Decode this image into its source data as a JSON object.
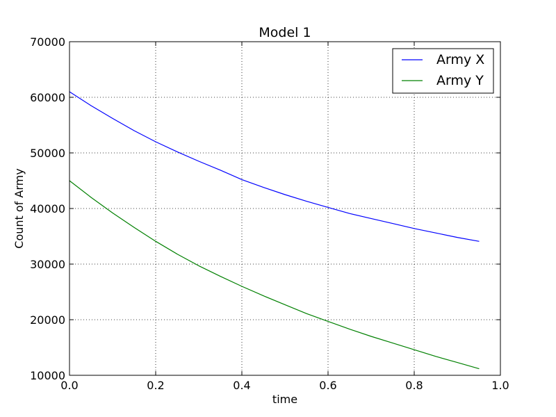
{
  "chart_data": {
    "type": "line",
    "title": "Model 1",
    "xlabel": "time",
    "ylabel": "Count of Army",
    "xlim": [
      0.0,
      1.0
    ],
    "ylim": [
      10000,
      70000
    ],
    "xticks": [
      "0.0",
      "0.2",
      "0.4",
      "0.6",
      "0.8",
      "1.0"
    ],
    "yticks": [
      "10000",
      "20000",
      "30000",
      "40000",
      "50000",
      "60000",
      "70000"
    ],
    "grid": true,
    "grid_style": "dotted",
    "legend_position": "top-right",
    "x": [
      0.0,
      0.05,
      0.1,
      0.15,
      0.2,
      0.25,
      0.3,
      0.35,
      0.4,
      0.45,
      0.5,
      0.55,
      0.6,
      0.65,
      0.7,
      0.75,
      0.8,
      0.85,
      0.9,
      0.95
    ],
    "series": [
      {
        "name": "Army X",
        "color": "#0000ff",
        "values": [
          61000,
          58500,
          56200,
          54000,
          52000,
          50200,
          48500,
          46900,
          45200,
          43800,
          42500,
          41300,
          40200,
          39100,
          38200,
          37300,
          36400,
          35600,
          34800,
          34100
        ]
      },
      {
        "name": "Army Y",
        "color": "#008000",
        "values": [
          45000,
          42000,
          39200,
          36600,
          34100,
          31800,
          29700,
          27800,
          26000,
          24300,
          22700,
          21100,
          19700,
          18300,
          17000,
          15800,
          14600,
          13400,
          12300,
          11200
        ]
      }
    ]
  }
}
